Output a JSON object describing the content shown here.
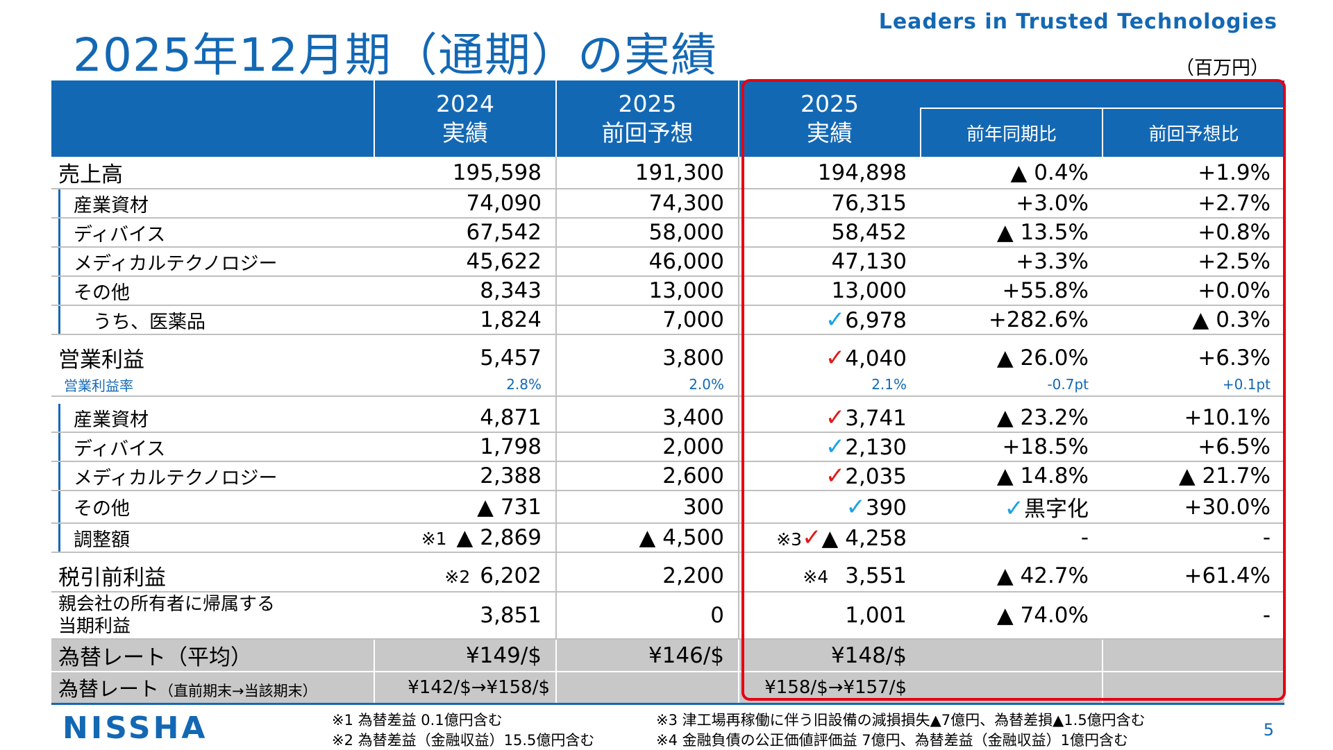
{
  "title": "2025年12月期（通期）の実績",
  "tagline": "Leaders in Trusted Technologies",
  "unit": "（百万円）",
  "header": {
    "col1_year": "2024",
    "col1_label": "実績",
    "col2_year": "2025",
    "col2_label": "前回予想",
    "col3_year": "2025",
    "col3_label": "実績",
    "col4_label": "前年同期比",
    "col5_label": "前回予想比"
  },
  "rows": {
    "sales": {
      "label": "売上高",
      "a": "195,598",
      "b": "191,300",
      "c": "194,898",
      "d": "▲ 0.4%",
      "e": "+1.9%"
    },
    "s_ind": {
      "label": "産業資材",
      "a": "74,090",
      "b": "74,300",
      "c": "76,315",
      "d": "+3.0%",
      "e": "+2.7%"
    },
    "s_dev": {
      "label": "ディバイス",
      "a": "67,542",
      "b": "58,000",
      "c": "58,452",
      "d": "▲ 13.5%",
      "e": "+0.8%"
    },
    "s_med": {
      "label": "メディカルテクノロジー",
      "a": "45,622",
      "b": "46,000",
      "c": "47,130",
      "d": "+3.3%",
      "e": "+2.5%"
    },
    "s_oth": {
      "label": "その他",
      "a": "8,343",
      "b": "13,000",
      "c": "13,000",
      "d": "+55.8%",
      "e": "+0.0%"
    },
    "s_pha": {
      "label": "うち、医薬品",
      "a": "1,824",
      "b": "7,000",
      "c": "6,978",
      "d": "+282.6%",
      "e": "▲ 0.3%"
    },
    "op": {
      "label": "営業利益",
      "a": "5,457",
      "b": "3,800",
      "c": "4,040",
      "d": "▲ 26.0%",
      "e": "+6.3%"
    },
    "opm": {
      "label": "営業利益率",
      "a": "2.8%",
      "b": "2.0%",
      "c": "2.1%",
      "d": "-0.7pt",
      "e": "+0.1pt"
    },
    "o_ind": {
      "label": "産業資材",
      "a": "4,871",
      "b": "3,400",
      "c": "3,741",
      "d": "▲ 23.2%",
      "e": "+10.1%"
    },
    "o_dev": {
      "label": "ディバイス",
      "a": "1,798",
      "b": "2,000",
      "c": "2,130",
      "d": "+18.5%",
      "e": "+6.5%"
    },
    "o_med": {
      "label": "メディカルテクノロジー",
      "a": "2,388",
      "b": "2,600",
      "c": "2,035",
      "d": "▲ 14.8%",
      "e": "▲ 21.7%"
    },
    "o_oth": {
      "label": "その他",
      "a": "▲ 731",
      "b": "300",
      "c": "390",
      "d": "黒字化",
      "e": "+30.0%"
    },
    "o_adj": {
      "label": "調整額",
      "a_note": "※1",
      "a": "▲ 2,869",
      "b": "▲ 4,500",
      "c_note": "※3",
      "c": "▲ 4,258",
      "d": "-",
      "e": "-"
    },
    "pbt": {
      "label": "税引前利益",
      "a_note": "※2",
      "a": "6,202",
      "b": "2,200",
      "c_note": "※4",
      "c": "3,551",
      "d": "▲ 42.7%",
      "e": "+61.4%"
    },
    "ni": {
      "label1": "親会社の所有者に帰属する",
      "label2": "当期利益",
      "a": "3,851",
      "b": "0",
      "c": "1,001",
      "d": "▲ 74.0%",
      "e": "-"
    },
    "fx_avg": {
      "label": "為替レート（平均）",
      "a": "¥149/$",
      "b": "¥146/$",
      "c": "¥148/$"
    },
    "fx_end": {
      "label": "為替レート",
      "label_small": "（直前期末→当該期末）",
      "a": "¥142/$→¥158/$",
      "c": "¥158/$→¥157/$"
    }
  },
  "checks": {
    "mark": "✓"
  },
  "footnotes": {
    "n1": "※1 為替差益 0.1億円含む",
    "n2": "※2 為替差益（金融収益）15.5億円含む",
    "n3": "※3 津工場再稼働に伴う旧設備の減損損失▲7億円、為替差損▲1.5億円含む",
    "n4": "※4 金融負債の公正価値評価益 7億円、為替差益（金融収益）1億円含む"
  },
  "logo": "NISSHA",
  "page_number": "5"
}
